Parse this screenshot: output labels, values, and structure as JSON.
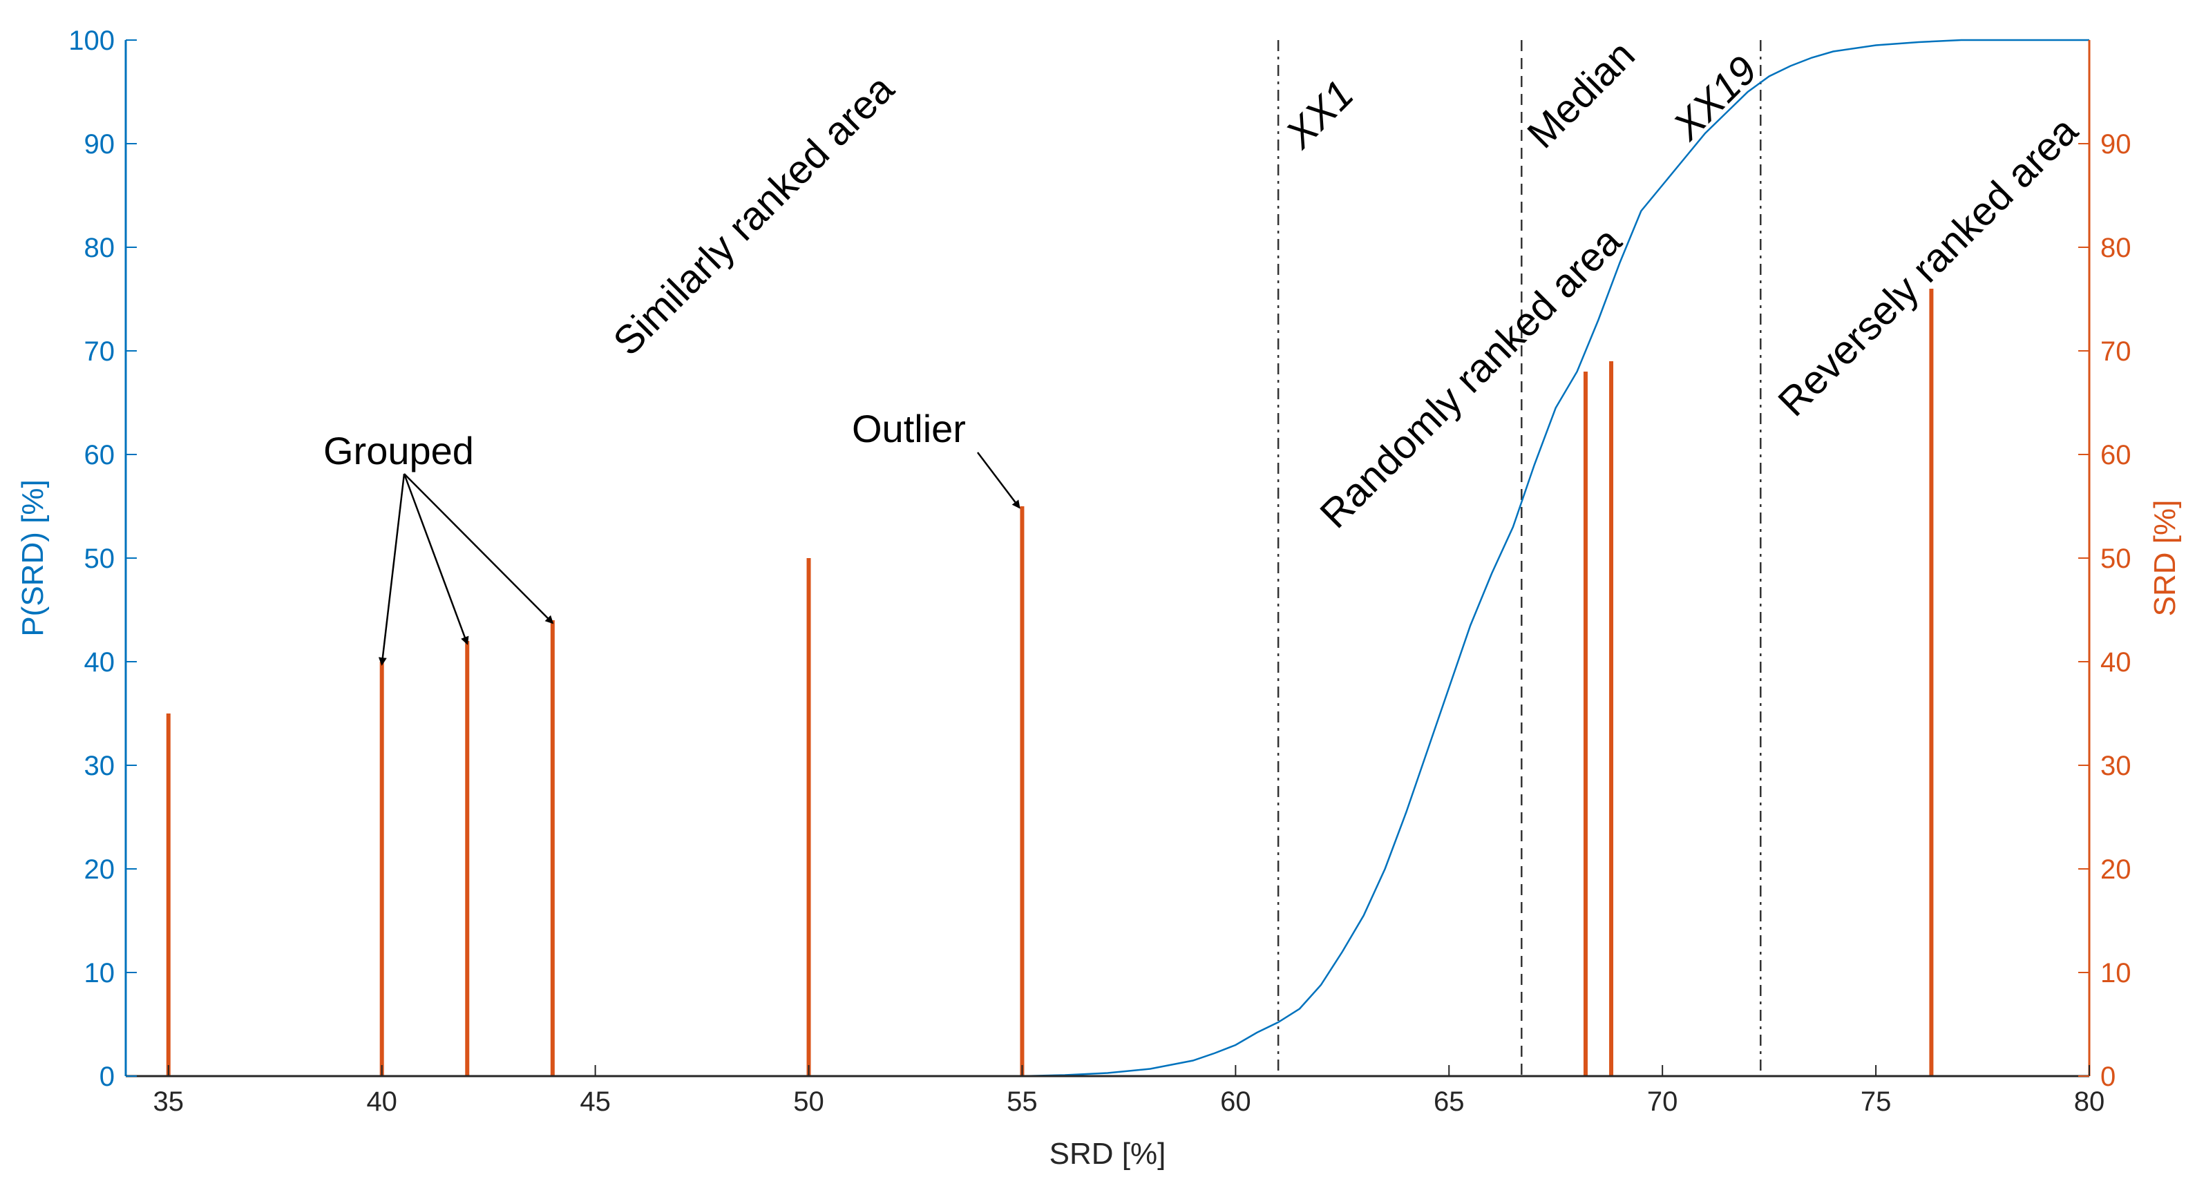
{
  "chart_data": {
    "type": "line",
    "xlabel": "SRD [%]",
    "ylabel_left": "P(SRD) [%]",
    "ylabel_right": "SRD [%]",
    "xlim": [
      34,
      80
    ],
    "ylim_left": [
      0,
      100
    ],
    "ylim_right": [
      0,
      100
    ],
    "xticks": [
      35,
      40,
      45,
      50,
      55,
      60,
      65,
      70,
      75,
      80
    ],
    "yticks_left": [
      0,
      10,
      20,
      30,
      40,
      50,
      60,
      70,
      80,
      90,
      100
    ],
    "yticks_right": [
      0,
      10,
      20,
      30,
      40,
      50,
      60,
      70,
      80,
      90
    ],
    "grid": false,
    "colors": {
      "left": "#0072BD",
      "right": "#D95319",
      "text": "#262626"
    },
    "series": [
      {
        "axis": "left",
        "kind": "line",
        "x": [
          54,
          55,
          56,
          57,
          58,
          59,
          59.5,
          60,
          60.5,
          61,
          61.5,
          62,
          62.5,
          63,
          63.5,
          64,
          64.5,
          65,
          65.5,
          66,
          66.5,
          67,
          67.5,
          68,
          68.5,
          69,
          69.5,
          70,
          70.5,
          71,
          71.5,
          72,
          72.5,
          73,
          73.5,
          74,
          75,
          76,
          77,
          78,
          80
        ],
        "y": [
          0,
          0,
          0.1,
          0.3,
          0.7,
          1.5,
          2.2,
          3.0,
          4.2,
          5.2,
          6.5,
          8.8,
          12.0,
          15.5,
          20.0,
          25.5,
          31.5,
          37.5,
          43.5,
          48.5,
          53.0,
          59.0,
          64.5,
          68.0,
          73.0,
          78.5,
          83.5,
          86.0,
          88.5,
          91.0,
          93.0,
          95.0,
          96.5,
          97.5,
          98.3,
          98.9,
          99.5,
          99.8,
          100,
          100,
          100
        ]
      },
      {
        "axis": "right",
        "kind": "stem",
        "x": [
          35,
          40,
          42,
          44,
          50,
          55,
          68.2,
          68.8,
          76.3
        ],
        "y": [
          35,
          40,
          42,
          44,
          50,
          55,
          68,
          69,
          76
        ]
      }
    ],
    "vlines": [
      {
        "x": 61,
        "style": "dashdot",
        "label": "XX1"
      },
      {
        "x": 66.7,
        "style": "dashed",
        "label": "Median"
      },
      {
        "x": 72.3,
        "style": "dashdot",
        "label": "XX19"
      }
    ],
    "region_labels": [
      "Similarly ranked area",
      "Randomly ranked area",
      "Reversely ranked area"
    ],
    "annotations": [
      {
        "text": "Grouped",
        "targets": [
          40,
          42,
          44
        ]
      },
      {
        "text": "Outlier",
        "targets": [
          55
        ]
      }
    ]
  }
}
